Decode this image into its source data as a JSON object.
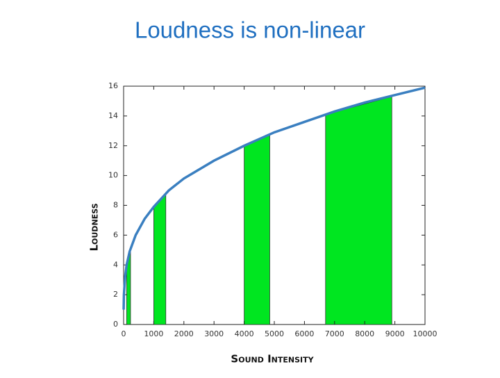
{
  "chart_data": {
    "type": "line",
    "title": "Loudness is non-linear",
    "xlabel": "Sound Intensity",
    "ylabel": "Loudness",
    "xlim": [
      0,
      10000
    ],
    "xticks": [
      0,
      1000,
      2000,
      3000,
      4000,
      5000,
      6000,
      7000,
      8000,
      9000,
      10000
    ],
    "ylim": [
      0,
      16
    ],
    "yticks": [
      0,
      2,
      4,
      6,
      8,
      10,
      12,
      14,
      16
    ],
    "series": [
      {
        "color": "#3a7fc0",
        "x": [
          1,
          10,
          50,
          100,
          200,
          400,
          700,
          1000,
          1500,
          2000,
          3000,
          4000,
          5000,
          6000,
          7000,
          8000,
          9000,
          10000
        ],
        "values": [
          1.0,
          2.0,
          3.2,
          4.0,
          4.9,
          6.0,
          7.1,
          7.9,
          9.0,
          9.8,
          11.0,
          12.0,
          12.9,
          13.6,
          14.3,
          14.9,
          15.4,
          15.9
        ]
      }
    ],
    "areas": [
      {
        "color": "#00e620",
        "x": [
          100,
          230
        ],
        "values": [
          4.0,
          5.1
        ]
      },
      {
        "color": "#00e620",
        "x": [
          1000,
          1400
        ],
        "values": [
          7.9,
          8.8
        ]
      },
      {
        "color": "#00e620",
        "x": [
          4000,
          4850
        ],
        "values": [
          12.0,
          12.7
        ]
      },
      {
        "color": "#00e620",
        "x": [
          6700,
          7800,
          8900
        ],
        "values": [
          14.1,
          14.7,
          15.3
        ]
      }
    ]
  }
}
